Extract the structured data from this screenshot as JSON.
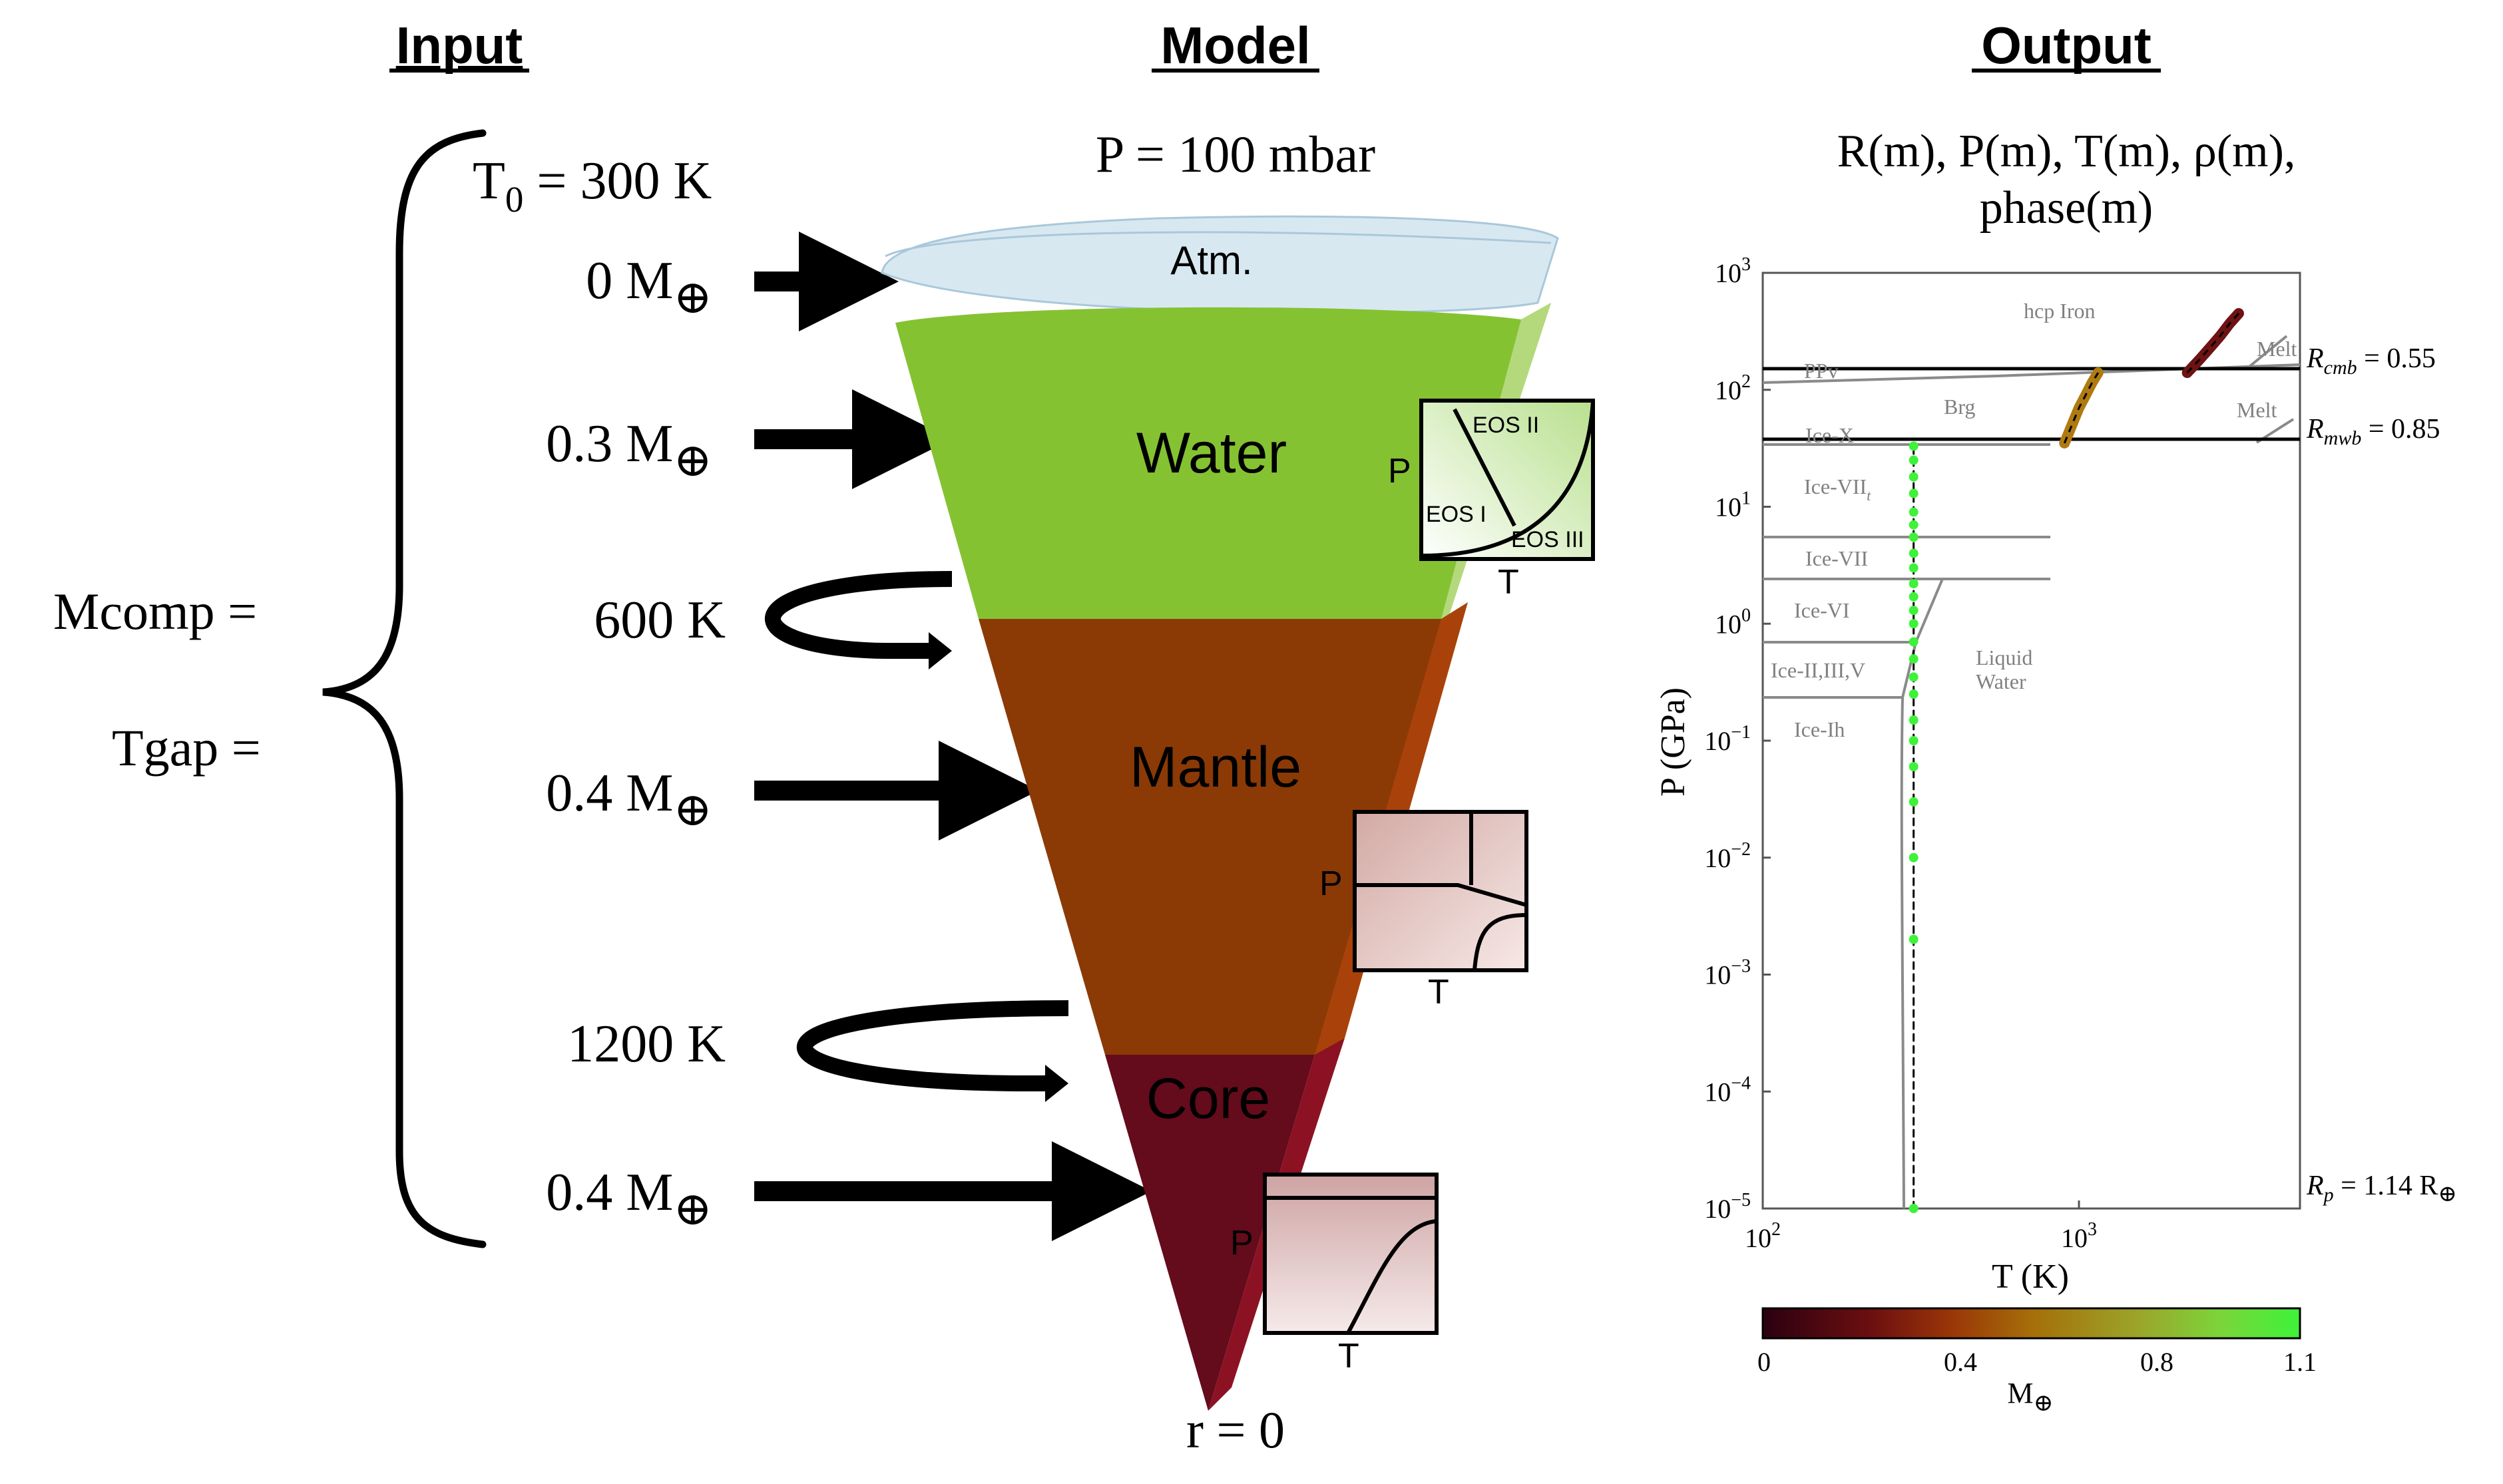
{
  "headers": {
    "input": "Input",
    "model": "Model",
    "output": "Output"
  },
  "input": {
    "lhs": [
      "Mcomp =",
      "Tgap ="
    ],
    "t0_main": "T",
    "t0_sub": "0",
    "t0_rest": " = 300 K",
    "rows": [
      {
        "value": "0 M",
        "kind": "mass"
      },
      {
        "value": "0.3 M",
        "kind": "mass"
      },
      {
        "value": "600 K",
        "kind": "temp"
      },
      {
        "value": "0.4 M",
        "kind": "mass"
      },
      {
        "value": "1200 K",
        "kind": "temp"
      },
      {
        "value": "0.4 M",
        "kind": "mass"
      }
    ],
    "earth_symbol": "⊕"
  },
  "model": {
    "top_label": "P = 100 mbar",
    "bottom_label": "r = 0",
    "layers": {
      "atm": "Atm.",
      "water": "Water",
      "mantle": "Mantle",
      "core": "Core"
    },
    "colors": {
      "atm": "#d6e8f2",
      "water": "#85c232",
      "mantle": "#8b3a06",
      "core": "#640b1c"
    },
    "insets": {
      "axis_p": "P",
      "axis_t": "T",
      "water_eos": [
        "EOS II",
        "EOS I",
        "EOS III"
      ]
    }
  },
  "output": {
    "subtitle_line1": "R(m), P(m), T(m),  ρ(m),",
    "subtitle_line2": "phase(m)",
    "xlabel": "T (K)",
    "ylabel": "P (GPa)",
    "x_ticks": [
      {
        "base": "10",
        "exp": "2"
      },
      {
        "base": "10",
        "exp": "3"
      }
    ],
    "y_ticks": [
      {
        "base": "10",
        "exp": "3"
      },
      {
        "base": "10",
        "exp": "2"
      },
      {
        "base": "10",
        "exp": "1"
      },
      {
        "base": "10",
        "exp": "0"
      },
      {
        "base": "10",
        "exp": "−1"
      },
      {
        "base": "10",
        "exp": "−2"
      },
      {
        "base": "10",
        "exp": "−3"
      },
      {
        "base": "10",
        "exp": "−4"
      },
      {
        "base": "10",
        "exp": "−5"
      }
    ],
    "phase_labels": [
      "hcp Iron",
      "Melt",
      "PPv",
      "Brg",
      "Melt",
      "Ice-X",
      "Ice-VII",
      "Ice-VII",
      "Ice-VI",
      "Ice-II,III,V",
      "Ice-Ih",
      "Liquid",
      "Water"
    ],
    "ice_vii_t_subscript": "t",
    "boundary_labels": [
      {
        "sym": "R",
        "sub": "cmb",
        "val": " = 0.55"
      },
      {
        "sym": "R",
        "sub": "mwb",
        "val": " = 0.85"
      },
      {
        "sym": "R",
        "sub": "p",
        "val": " = 1.14 R"
      }
    ],
    "colorbar": {
      "ticks": [
        "0",
        "0.4",
        "0.8",
        "1.1"
      ],
      "label": "M",
      "range": [
        0,
        1.1
      ]
    }
  },
  "chart_data": {
    "type": "line",
    "xlabel": "T (K)",
    "ylabel": "P (GPa)",
    "xscale": "log",
    "yscale": "log",
    "xlim": [
      100,
      5000
    ],
    "ylim": [
      1e-05,
      1000
    ],
    "color_variable": "M⊕",
    "color_range": [
      0,
      1.1
    ],
    "series": [
      {
        "x": [
          300,
          300,
          300,
          300,
          300,
          300,
          300,
          300,
          300,
          300,
          300,
          300,
          300,
          300,
          300,
          300,
          300,
          300,
          300,
          300,
          300,
          300,
          300,
          300
        ],
        "y": [
          1e-05,
          0.002,
          0.01,
          0.03,
          0.06,
          0.1,
          0.15,
          0.25,
          0.35,
          0.5,
          0.7,
          1,
          1.3,
          1.7,
          2.2,
          3,
          4,
          5.5,
          7,
          9,
          13,
          18,
          25,
          33
        ]
      },
      {
        "x": [
          900,
          950,
          1000,
          1050,
          1100,
          1150
        ],
        "y": [
          35,
          50,
          70,
          90,
          115,
          140
        ]
      },
      {
        "x": [
          2200,
          2400,
          2600,
          2800,
          3000,
          3200
        ],
        "y": [
          140,
          180,
          230,
          290,
          370,
          450
        ]
      }
    ],
    "horizontal_lines": [
      140,
      33
    ],
    "legend": "none",
    "grid": false
  }
}
